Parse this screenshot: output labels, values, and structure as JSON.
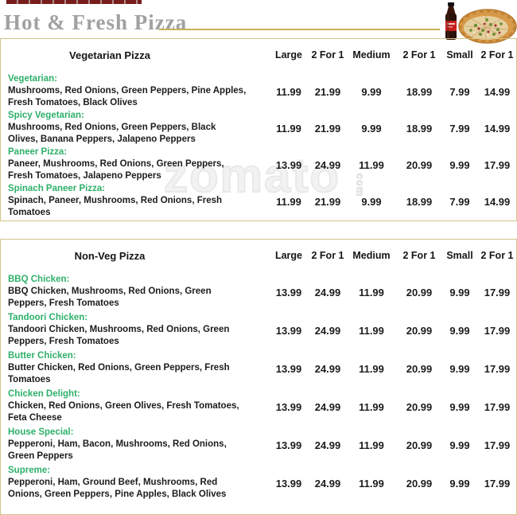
{
  "header": {
    "title": "Hot & Fresh Pizza",
    "decor_icons": [
      "cola-bottle-icon",
      "pizza-icon"
    ]
  },
  "watermark": {
    "text": "zomato",
    "suffix": "com"
  },
  "price_columns": [
    "Large",
    "2 For 1",
    "Medium",
    "2 For 1",
    "Small",
    "2 For 1"
  ],
  "tables": [
    {
      "title": "Vegetarian Pizza",
      "items": [
        {
          "name": "Vegetarian:",
          "description": "Mushrooms, Red Onions, Green Peppers, Pine Apples,\nFresh Tomatoes, Black Olives",
          "prices": [
            "11.99",
            "21.99",
            "9.99",
            "18.99",
            "7.99",
            "14.99"
          ]
        },
        {
          "name": "Spicy Vegetarian:",
          "description": "Mushrooms, Red Onions, Green Peppers, Black\nOlives, Banana Peppers, Jalapeno Peppers",
          "prices": [
            "11.99",
            "21.99",
            "9.99",
            "18.99",
            "7.99",
            "14.99"
          ]
        },
        {
          "name": "Paneer Pizza:",
          "description": "Paneer, Mushrooms, Red Onions, Green Peppers,\nFresh Tomatoes, Jalapeno Peppers",
          "prices": [
            "13.99",
            "24.99",
            "11.99",
            "20.99",
            "9.99",
            "17.99"
          ]
        },
        {
          "name": "Spinach Paneer Pizza:",
          "description": "Spinach, Paneer, Mushrooms, Red Onions, Fresh\nTomatoes",
          "prices": [
            "11.99",
            "21.99",
            "9.99",
            "18.99",
            "7.99",
            "14.99"
          ]
        }
      ]
    },
    {
      "title": "Non-Veg Pizza",
      "items": [
        {
          "name": "BBQ Chicken:",
          "description": "BBQ Chicken, Mushrooms, Red Onions, Green\nPeppers, Fresh Tomatoes",
          "prices": [
            "13.99",
            "24.99",
            "11.99",
            "20.99",
            "9.99",
            "17.99"
          ]
        },
        {
          "name": "Tandoori Chicken:",
          "description": "Tandoori Chicken, Mushrooms, Red Onions, Green\nPeppers, Fresh Tomatoes",
          "prices": [
            "13.99",
            "24.99",
            "11.99",
            "20.99",
            "9.99",
            "17.99"
          ]
        },
        {
          "name": "Butter Chicken:",
          "description": "Butter Chicken, Red Onions, Green Peppers, Fresh\nTomatoes",
          "prices": [
            "13.99",
            "24.99",
            "11.99",
            "20.99",
            "9.99",
            "17.99"
          ]
        },
        {
          "name": "Chicken Delight:",
          "description": "Chicken, Red Onions, Green Olives, Fresh Tomatoes,\nFeta Cheese",
          "prices": [
            "13.99",
            "24.99",
            "11.99",
            "20.99",
            "9.99",
            "17.99"
          ]
        },
        {
          "name": "House Special:",
          "description": "Pepperoni, Ham, Bacon, Mushrooms, Red Onions,\nGreen Peppers",
          "prices": [
            "13.99",
            "24.99",
            "11.99",
            "20.99",
            "9.99",
            "17.99"
          ]
        },
        {
          "name": "Supreme:",
          "description": "Pepperoni, Ham, Ground Beef, Mushrooms, Red\nOnions, Green Peppers, Pine Apples, Black Olives",
          "prices": [
            "13.99",
            "24.99",
            "11.99",
            "20.99",
            "9.99",
            "17.99"
          ]
        }
      ]
    }
  ],
  "colors": {
    "item_name_green": "#2eb06a",
    "table_border_khaki": "#d4c488",
    "title_gray": "#a1a1a1",
    "divider_khaki": "#c8b25e",
    "top_bar_maroon": "#771b1b",
    "text_dark": "#1c1c1c"
  }
}
